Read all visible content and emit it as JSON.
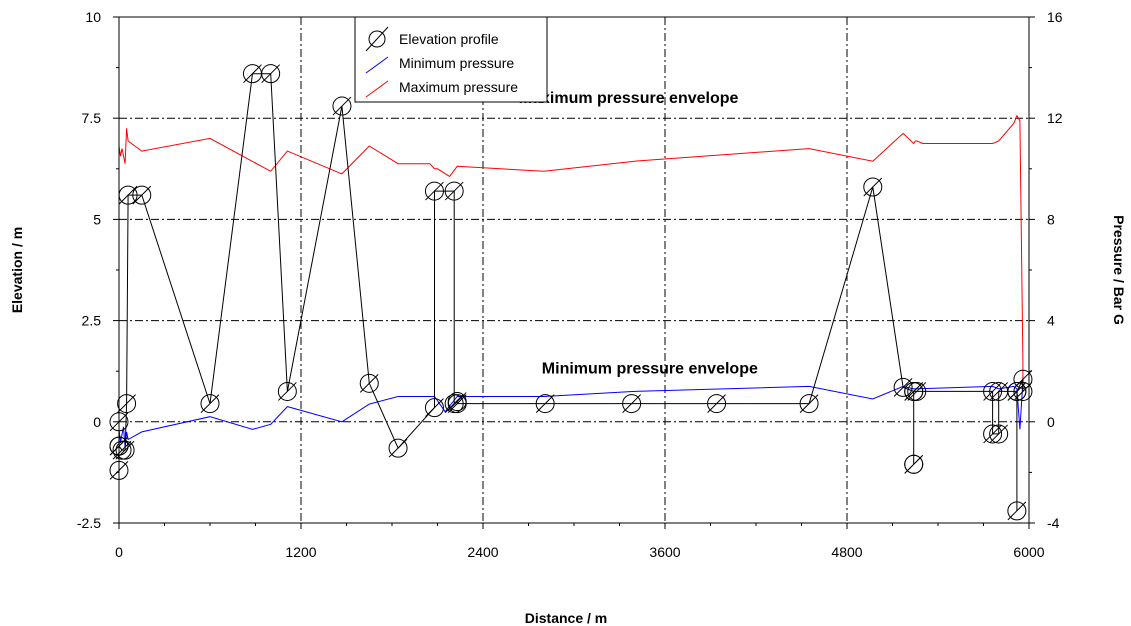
{
  "chart_data": {
    "type": "line",
    "xlabel": "Distance / m",
    "ylabel_left": "Elevation / m",
    "ylabel_right": "Pressure / Bar G",
    "xlim": [
      0,
      6000
    ],
    "ylim_left": [
      -2.5,
      10
    ],
    "ylim_right": [
      -4,
      16
    ],
    "x_ticks": [
      "0",
      "1200",
      "2400",
      "3600",
      "4800",
      "6000"
    ],
    "y_left_ticks": [
      "-2.5",
      "0",
      "2.5",
      "5",
      "7.5",
      "10"
    ],
    "y_right_ticks": [
      "-4",
      "0",
      "4",
      "8",
      "12",
      "16"
    ],
    "grid": true,
    "legend_position": "top-center",
    "annotations": [
      {
        "text": "Maximum pressure envelope",
        "x": 3360,
        "y": 12.6,
        "axis": "right"
      },
      {
        "text": "Minimum pressure envelope",
        "x": 3500,
        "y": 1.9,
        "axis": "right"
      }
    ],
    "series": [
      {
        "name": "Elevation profile",
        "axis": "left",
        "color": "#000000",
        "marker": "circle-slash",
        "x": [
          0,
          0,
          0,
          0,
          20,
          40,
          50,
          60,
          150,
          600,
          880,
          1000,
          1110,
          1470,
          1650,
          1840,
          2080,
          2080,
          2210,
          2210,
          2230,
          2230,
          2810,
          3380,
          3940,
          4550,
          4970,
          5170,
          5240,
          5240,
          5240,
          5240,
          5260,
          5760,
          5760,
          5800,
          5800,
          5920,
          5920,
          5920,
          5960,
          5960
        ],
        "y": [
          -1.2,
          -0.6,
          0,
          -0.6,
          -0.7,
          -0.7,
          0.45,
          5.6,
          5.6,
          0.45,
          8.6,
          8.6,
          0.75,
          7.8,
          0.95,
          -0.65,
          0.35,
          5.7,
          5.7,
          0.45,
          0.5,
          0.45,
          0.45,
          0.45,
          0.45,
          0.45,
          5.8,
          0.85,
          0.75,
          -1.05,
          -1.05,
          0.75,
          0.75,
          0.75,
          -0.3,
          -0.3,
          0.75,
          0.75,
          -2.2,
          0.75,
          1.05,
          0.75
        ]
      },
      {
        "name": "Minimum pressure",
        "axis": "right",
        "color": "#0000ff",
        "x": [
          0,
          10,
          30,
          40,
          50,
          60,
          150,
          600,
          880,
          1000,
          1110,
          1470,
          1650,
          1840,
          2080,
          2150,
          2230,
          2800,
          3400,
          4550,
          4970,
          5170,
          5240,
          5250,
          5760,
          5800,
          5900,
          5920,
          5940,
          5960
        ],
        "y": [
          -0.3,
          -0.8,
          -0.2,
          -1.0,
          -0.4,
          -0.7,
          -0.4,
          0.2,
          -0.3,
          -0.1,
          0.6,
          0.0,
          0.7,
          1.0,
          1.0,
          0.4,
          1.0,
          1.0,
          1.2,
          1.4,
          0.9,
          1.4,
          1.3,
          1.3,
          1.4,
          1.3,
          1.4,
          1.3,
          -0.3,
          1.6
        ]
      },
      {
        "name": "Maximum pressure",
        "axis": "right",
        "color": "#ff0000",
        "x": [
          0,
          10,
          20,
          40,
          50,
          60,
          150,
          600,
          1000,
          1110,
          1470,
          1650,
          1840,
          2050,
          2080,
          2100,
          2180,
          2230,
          2800,
          3400,
          4550,
          4970,
          5170,
          5240,
          5250,
          5260,
          5300,
          5760,
          5800,
          5900,
          5920,
          5940,
          5960,
          5960
        ],
        "y": [
          10.9,
          10.5,
          10.8,
          10.2,
          11.6,
          11.1,
          10.7,
          11.2,
          9.9,
          10.7,
          9.8,
          10.9,
          10.2,
          10.2,
          10.0,
          10.0,
          9.7,
          10.1,
          9.9,
          10.3,
          10.8,
          10.3,
          11.4,
          11.0,
          11.1,
          11.1,
          11.0,
          11.0,
          11.1,
          11.8,
          12.1,
          11.9,
          2.4,
          1.4
        ]
      }
    ]
  }
}
